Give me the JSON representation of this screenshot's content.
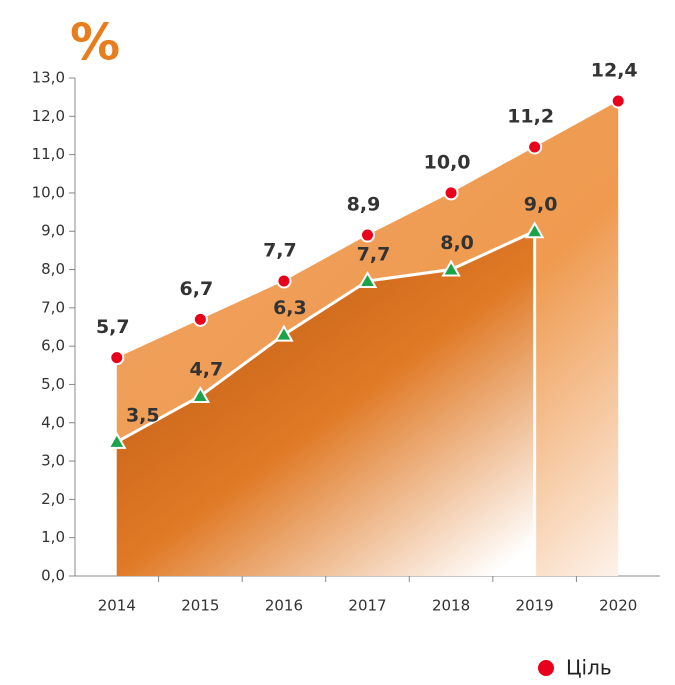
{
  "chart_data": {
    "type": "area",
    "title": "%",
    "categories": [
      "2014",
      "2015",
      "2016",
      "2017",
      "2018",
      "2019",
      "2020"
    ],
    "series": [
      {
        "name": "Ціль",
        "color": "#e8001c",
        "values": [
          5.7,
          6.7,
          7.7,
          8.9,
          10.0,
          11.2,
          12.4
        ],
        "value_labels": [
          "5,7",
          "6,7",
          "7,7",
          "8,9",
          "10,0",
          "11,2",
          "12,4"
        ]
      },
      {
        "color": "#1aa34a",
        "values": [
          3.5,
          4.7,
          6.3,
          7.7,
          8.0,
          9.0,
          null
        ],
        "value_labels": [
          "3,5",
          "4,7",
          "6,3",
          "7,7",
          "8,0",
          "9,0",
          null
        ]
      }
    ],
    "ylim": [
      0,
      13
    ],
    "yticks": [
      {
        "value": 0,
        "label": "0,0"
      },
      {
        "value": 1,
        "label": "1,0"
      },
      {
        "value": 2,
        "label": "2,0"
      },
      {
        "value": 3,
        "label": "3,0"
      },
      {
        "value": 4,
        "label": "4,0"
      },
      {
        "value": 5,
        "label": "5,0"
      },
      {
        "value": 6,
        "label": "6,0"
      },
      {
        "value": 7,
        "label": "7,0"
      },
      {
        "value": 8,
        "label": "8,0"
      },
      {
        "value": 9,
        "label": "9,0"
      },
      {
        "value": 10,
        "label": "10,0"
      },
      {
        "value": 11,
        "label": "11,0"
      },
      {
        "value": 12,
        "label": "12,0"
      },
      {
        "value": 13,
        "label": "13,0"
      }
    ],
    "legend": "bottom-right"
  }
}
